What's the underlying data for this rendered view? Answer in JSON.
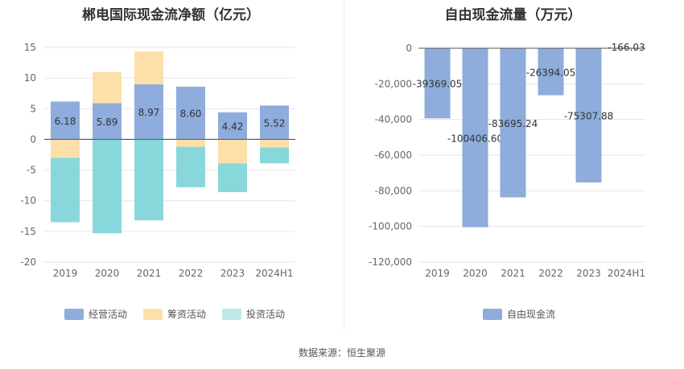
{
  "source_label": "数据来源：恒生聚源",
  "chart_data": [
    {
      "type": "bar",
      "stacked": true,
      "title": "郴电国际现金流净额（亿元）",
      "categories": [
        "2019",
        "2020",
        "2021",
        "2022",
        "2023",
        "2024H1"
      ],
      "ylim": [
        -20,
        15
      ],
      "yticks": [
        15,
        10,
        5,
        0,
        -5,
        -10,
        -15,
        -20
      ],
      "ytick_labels": [
        "15",
        "10",
        "5",
        "0",
        "-5",
        "-10",
        "-15",
        "-20"
      ],
      "grid": true,
      "legend_position": "bottom",
      "series": [
        {
          "name": "经营活动",
          "color": "#8eacdc",
          "values": [
            6.18,
            5.89,
            8.97,
            8.6,
            4.42,
            5.52
          ],
          "labels": [
            "6.18",
            "5.89",
            "8.97",
            "8.60",
            "4.42",
            "5.52"
          ]
        },
        {
          "name": "筹资活动",
          "color": "#fde0a9",
          "values": [
            -3.0,
            5.1,
            5.4,
            -1.2,
            -3.9,
            -1.3
          ]
        },
        {
          "name": "投资活动",
          "color": "#88d8db",
          "values": [
            -10.5,
            -15.3,
            -13.2,
            -6.6,
            -4.7,
            -2.6
          ]
        }
      ]
    },
    {
      "type": "bar",
      "title": "自由现金流量（万元）",
      "categories": [
        "2019",
        "2020",
        "2021",
        "2022",
        "2023",
        "2024H1"
      ],
      "ylim": [
        -120000,
        0
      ],
      "yticks": [
        0,
        -20000,
        -40000,
        -60000,
        -80000,
        -100000,
        -120000
      ],
      "ytick_labels": [
        "0",
        "-20,000",
        "-40,000",
        "-60,000",
        "-80,000",
        "-100,000",
        "-120,000"
      ],
      "grid": true,
      "legend_position": "bottom",
      "series": [
        {
          "name": "自由现金流",
          "color": "#8eacdc",
          "values": [
            -39369.05,
            -100406.6,
            -83695.24,
            -26394.05,
            -75307.88,
            -166.03
          ],
          "labels": [
            "-39369.05",
            "-100406.60",
            "-83695.24",
            "-26394.05",
            "-75307.88",
            "-166.03"
          ]
        }
      ]
    }
  ]
}
